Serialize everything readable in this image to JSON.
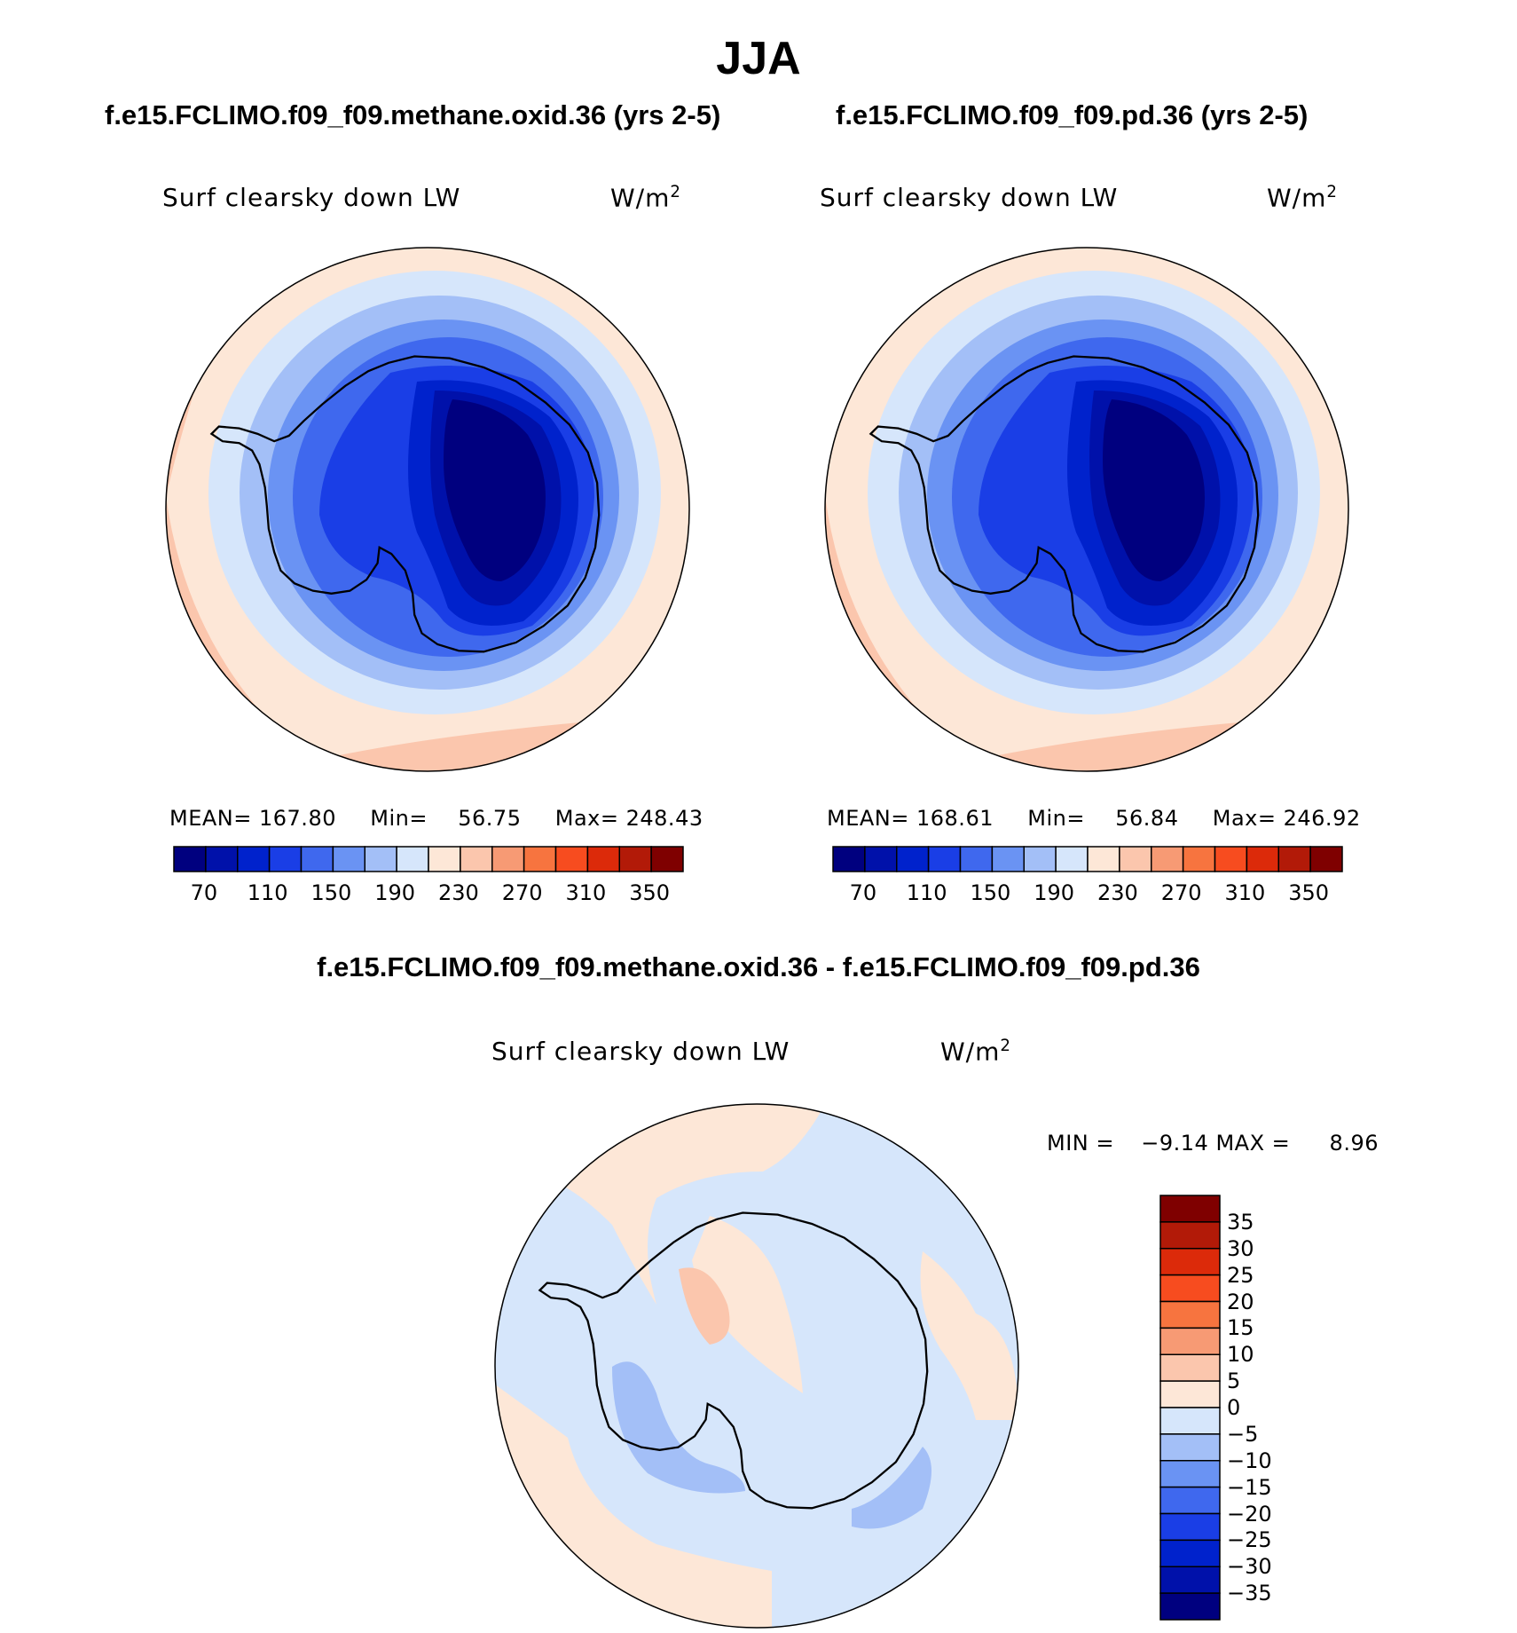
{
  "title": "JJA",
  "panels": [
    {
      "case": "f.e15.FCLIMO.f09_f09.methane.oxid.36 (yrs 2-5)",
      "variable": "Surf clearsky down LW",
      "units": "W/m",
      "units_sup": "2",
      "stats": {
        "mean_label": "MEAN=",
        "mean": "167.80",
        "min_label": "Min=",
        "min": "56.75",
        "max_label": "Max=",
        "max": "248.43"
      }
    },
    {
      "case": "f.e15.FCLIMO.f09_f09.pd.36 (yrs 2-5)",
      "variable": "Surf clearsky down LW",
      "units": "W/m",
      "units_sup": "2",
      "stats": {
        "mean_label": "MEAN=",
        "mean": "168.61",
        "min_label": "Min=",
        "min": "56.84",
        "max_label": "Max=",
        "max": "246.92"
      }
    }
  ],
  "diff_panel": {
    "case": "f.e15.FCLIMO.f09_f09.methane.oxid.36 - f.e15.FCLIMO.f09_f09.pd.36",
    "variable": "Surf clearsky down LW",
    "units": "W/m",
    "units_sup": "2",
    "stats": {
      "min_label": "MIN =",
      "min": "−9.14",
      "max_label": "MAX =",
      "max": "8.96"
    }
  },
  "colorbar_abs": {
    "colors": [
      "#00007f",
      "#0011aa",
      "#0022cc",
      "#1a3ee6",
      "#3f68ee",
      "#6a93f3",
      "#a3bff7",
      "#d6e6fb",
      "#fde7d7",
      "#fbc6ad",
      "#f79a74",
      "#f7743f",
      "#f74c1f",
      "#dc2a0a",
      "#b21a08",
      "#7f0000"
    ],
    "labels": [
      "70",
      "110",
      "150",
      "190",
      "230",
      "270",
      "310",
      "350"
    ]
  },
  "colorbar_diff": {
    "colors": [
      "#7f0000",
      "#b21a08",
      "#dc2a0a",
      "#f74c1f",
      "#f7743f",
      "#f79a74",
      "#fbc6ad",
      "#fde7d7",
      "#d6e6fb",
      "#a3bff7",
      "#6a93f3",
      "#3f68ee",
      "#1a3ee6",
      "#0022cc",
      "#0011aa",
      "#00007f"
    ],
    "labels": [
      "35",
      "30",
      "25",
      "20",
      "15",
      "10",
      "5",
      "0",
      "−5",
      "−10",
      "−15",
      "−20",
      "−25",
      "−30",
      "−35"
    ]
  },
  "map_colors": {
    "ring_outer": "#fbc6ad",
    "ring_light": "#fde7d7",
    "level_190": "#d6e6fb",
    "level_150": "#a3bff7",
    "level_130": "#6a93f3",
    "level_110": "#3f68ee",
    "level_90": "#1a3ee6",
    "level_80": "#0022cc",
    "level_70": "#0011aa",
    "level_60": "#00007f",
    "diff_pos": "#fde7d7",
    "diff_pos_strong": "#fbc6ad",
    "diff_neg": "#d6e6fb",
    "diff_neg_strong": "#a3bff7"
  }
}
